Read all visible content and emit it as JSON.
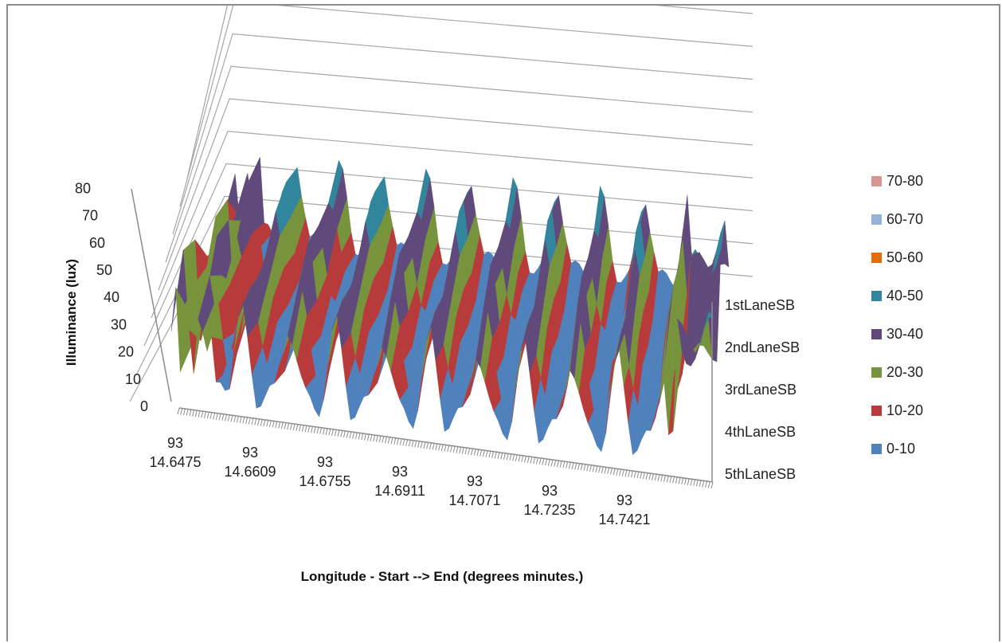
{
  "chart_data": {
    "type": "surface",
    "title": "",
    "xlabel": "Longitude - Start --> End (degrees minutes.)",
    "ylabel": "Illuminance (lux)",
    "zlim": [
      0,
      80
    ],
    "z_ticks": [
      "0",
      "10",
      "20",
      "30",
      "40",
      "50",
      "60",
      "70",
      "80"
    ],
    "x_tick_labels": [
      {
        "deg": "93",
        "min": "14.6475"
      },
      {
        "deg": "93",
        "min": "14.6609"
      },
      {
        "deg": "93",
        "min": "14.6755"
      },
      {
        "deg": "93",
        "min": "14.6911"
      },
      {
        "deg": "93",
        "min": "14.7071"
      },
      {
        "deg": "93",
        "min": "14.7235"
      },
      {
        "deg": "93",
        "min": "14.7421"
      }
    ],
    "series_labels": [
      "1stLaneSB",
      "2ndLaneSB",
      "3rdLaneSB",
      "4thLaneSB",
      "5thLaneSB"
    ],
    "legend": {
      "placement": "right",
      "entries": [
        {
          "label": "70-80",
          "color": "#d99594"
        },
        {
          "label": "60-70",
          "color": "#95b3d7"
        },
        {
          "label": "50-60",
          "color": "#e46c0a"
        },
        {
          "label": "40-50",
          "color": "#31859c"
        },
        {
          "label": "30-40",
          "color": "#604a7b"
        },
        {
          "label": "20-30",
          "color": "#77933c"
        },
        {
          "label": "10-20",
          "color": "#b83b3b"
        },
        {
          "label": "0-10",
          "color": "#4f81bd"
        }
      ]
    },
    "grid": true
  }
}
